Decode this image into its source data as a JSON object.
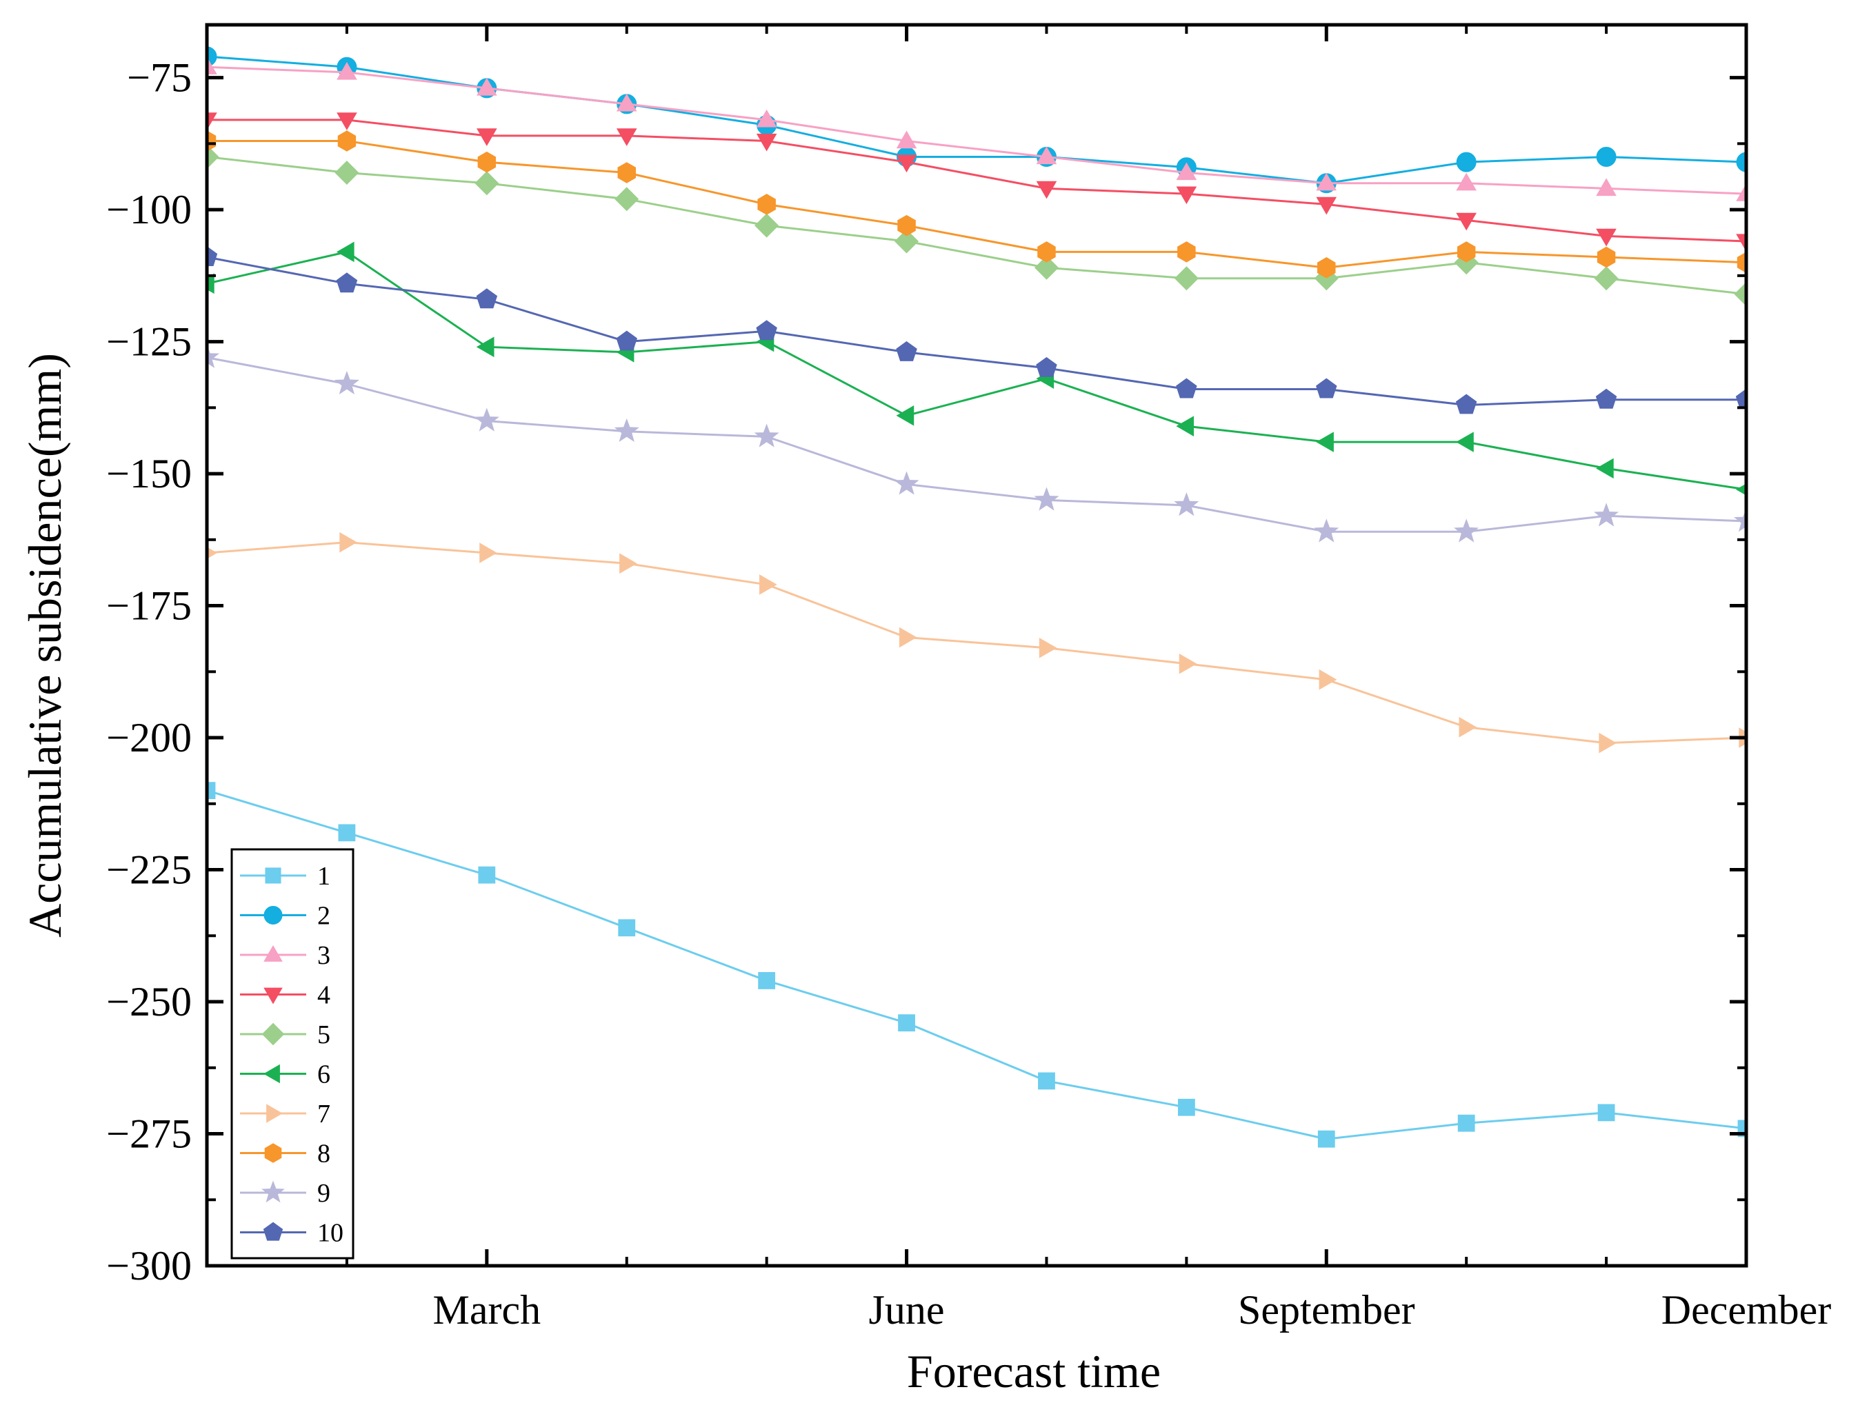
{
  "chart_data": {
    "type": "line",
    "title": "",
    "xlabel": "Forecast time",
    "ylabel": "Accumulative subsidence(mm)",
    "x": [
      1,
      2,
      3,
      4,
      5,
      6,
      7,
      8,
      9,
      10,
      11,
      12
    ],
    "xlim": [
      1,
      12
    ],
    "x_ticks": [
      {
        "x": 3,
        "label": "March"
      },
      {
        "x": 6,
        "label": "June"
      },
      {
        "x": 9,
        "label": "September"
      },
      {
        "x": 12,
        "label": "December"
      }
    ],
    "ylim": [
      -300,
      -65
    ],
    "y_ticks": [
      -75,
      -100,
      -125,
      -150,
      -175,
      -200,
      -225,
      -250,
      -275,
      -300
    ],
    "y_tick_labels": [
      "−75",
      "−100",
      "−125",
      "−150",
      "−175",
      "−200",
      "−225",
      "−250",
      "−275",
      "−300"
    ],
    "grid": false,
    "legend_position": "bottom-left",
    "series": [
      {
        "name": "1",
        "color": "#6ccdee",
        "marker": "square",
        "values": [
          -210,
          -218,
          -226,
          -236,
          -246,
          -254,
          -265,
          -270,
          -276,
          -273,
          -271,
          -274
        ]
      },
      {
        "name": "2",
        "color": "#14aee0",
        "marker": "circle",
        "values": [
          -71,
          -73,
          -77,
          -80,
          -84,
          -90,
          -90,
          -92,
          -95,
          -91,
          -90,
          -91
        ]
      },
      {
        "name": "3",
        "color": "#f7a1c4",
        "marker": "triangle-up",
        "values": [
          -73,
          -74,
          -77,
          -80,
          -83,
          -87,
          -90,
          -93,
          -95,
          -95,
          -96,
          -97
        ]
      },
      {
        "name": "4",
        "color": "#f44e63",
        "marker": "triangle-down",
        "values": [
          -83,
          -83,
          -86,
          -86,
          -87,
          -91,
          -96,
          -97,
          -99,
          -102,
          -105,
          -106
        ]
      },
      {
        "name": "5",
        "color": "#9ccf8b",
        "marker": "diamond",
        "values": [
          -90,
          -93,
          -95,
          -98,
          -103,
          -106,
          -111,
          -113,
          -113,
          -110,
          -113,
          -116
        ]
      },
      {
        "name": "6",
        "color": "#1bb152",
        "marker": "triangle-left",
        "values": [
          -114,
          -108,
          -126,
          -127,
          -125,
          -139,
          -132,
          -141,
          -144,
          -144,
          -149,
          -153
        ]
      },
      {
        "name": "7",
        "color": "#f9c399",
        "marker": "triangle-right",
        "values": [
          -165,
          -163,
          -165,
          -167,
          -171,
          -181,
          -183,
          -186,
          -189,
          -198,
          -201,
          -200
        ]
      },
      {
        "name": "8",
        "color": "#f7962b",
        "marker": "hexagon",
        "values": [
          -87,
          -87,
          -91,
          -93,
          -99,
          -103,
          -108,
          -108,
          -111,
          -108,
          -109,
          -110
        ]
      },
      {
        "name": "9",
        "color": "#b9b8da",
        "marker": "star",
        "values": [
          -128,
          -133,
          -140,
          -142,
          -143,
          -152,
          -155,
          -156,
          -161,
          -161,
          -158,
          -159
        ]
      },
      {
        "name": "10",
        "color": "#5467b2",
        "marker": "pentagon",
        "values": [
          -109,
          -114,
          -117,
          -125,
          -123,
          -127,
          -130,
          -134,
          -134,
          -137,
          -136,
          -136
        ]
      }
    ]
  }
}
